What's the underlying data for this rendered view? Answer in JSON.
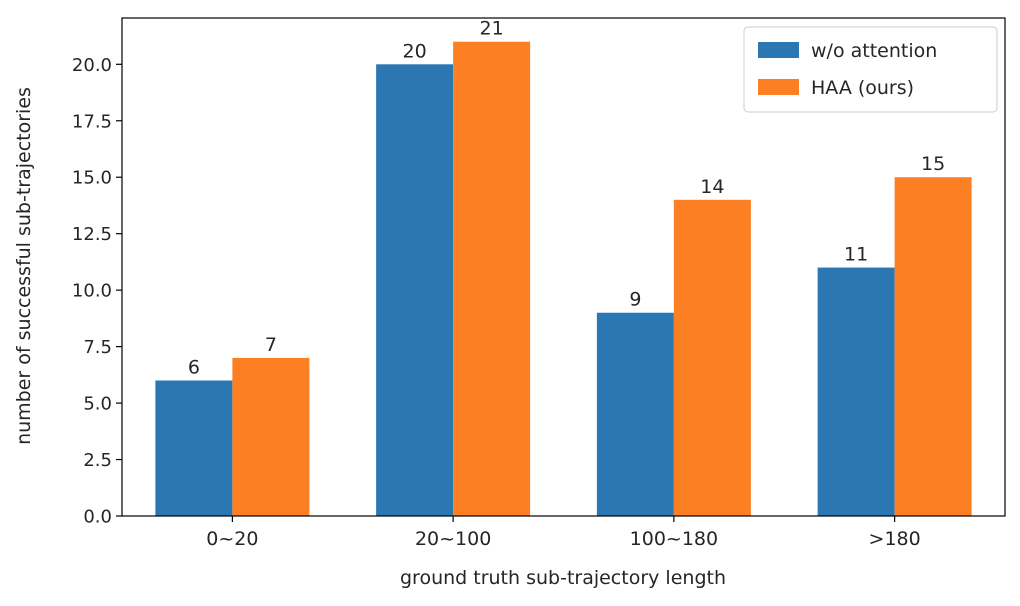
{
  "chart_data": {
    "type": "bar",
    "categories": [
      "0~20",
      "20~100",
      "100~180",
      ">180"
    ],
    "series": [
      {
        "name": "w/o attention",
        "values": [
          6,
          20,
          9,
          11
        ],
        "color": "#2a77b4"
      },
      {
        "name": "HAA (ours)",
        "values": [
          7,
          21,
          14,
          15
        ],
        "color": "#fd7f23"
      }
    ],
    "xlabel": "ground truth sub-trajectory length",
    "ylabel": "number of successful sub-trajectories",
    "ylim": [
      0,
      22.05
    ],
    "yticks": [
      0.0,
      2.5,
      5.0,
      7.5,
      10.0,
      12.5,
      15.0,
      17.5,
      20.0
    ],
    "ytick_labels": [
      "0.0",
      "2.5",
      "5.0",
      "7.5",
      "10.0",
      "12.5",
      "15.0",
      "17.5",
      "20.0"
    ],
    "data_labels": true,
    "legend_position": "top-right",
    "grid": false
  }
}
